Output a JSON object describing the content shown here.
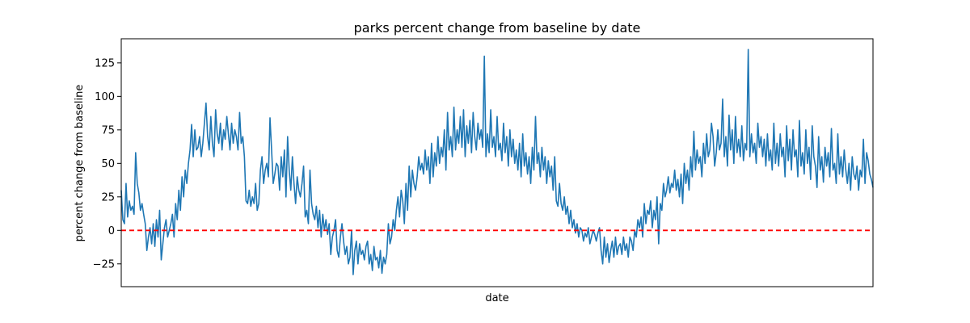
{
  "chart_data": {
    "type": "line",
    "title": "parks percent change from baseline by date",
    "xlabel": "date",
    "ylabel": "percent change from baseline",
    "ylim": [
      -42,
      143
    ],
    "yticks": [
      -25,
      0,
      25,
      50,
      75,
      100,
      125
    ],
    "x_tick_labels_shown": false,
    "grid": false,
    "legend": "none",
    "reference_line": {
      "y": 0,
      "color": "#ff0000",
      "style": "dashed"
    },
    "series": [
      {
        "color": "#1f77b4",
        "values": [
          30,
          8,
          5,
          35,
          10,
          22,
          15,
          18,
          12,
          58,
          35,
          28,
          15,
          20,
          12,
          5,
          -15,
          -5,
          2,
          -10,
          5,
          -12,
          8,
          -5,
          15,
          -22,
          -10,
          2,
          8,
          -5,
          0,
          5,
          12,
          -5,
          20,
          8,
          30,
          15,
          40,
          25,
          45,
          35,
          50,
          60,
          79,
          55,
          75,
          60,
          62,
          70,
          55,
          65,
          80,
          95,
          70,
          60,
          85,
          65,
          55,
          90,
          72,
          65,
          80,
          60,
          75,
          68,
          85,
          72,
          60,
          80,
          65,
          75,
          70,
          60,
          88,
          65,
          70,
          55,
          22,
          20,
          30,
          18,
          25,
          20,
          35,
          15,
          20,
          45,
          55,
          35,
          45,
          50,
          40,
          84,
          60,
          35,
          42,
          50,
          48,
          30,
          55,
          40,
          60,
          25,
          70,
          45,
          30,
          55,
          35,
          20,
          40,
          30,
          25,
          35,
          48,
          10,
          15,
          5,
          45,
          20,
          12,
          8,
          18,
          2,
          15,
          -5,
          12,
          0,
          8,
          -3,
          5,
          -18,
          -5,
          0,
          8,
          -15,
          -20,
          -5,
          5,
          -8,
          -18,
          -12,
          -25,
          -20,
          0,
          -33,
          -15,
          -8,
          -25,
          -10,
          -18,
          -15,
          -22,
          -12,
          -8,
          -25,
          -18,
          -30,
          -12,
          -22,
          -20,
          -28,
          -15,
          -32,
          -20,
          -25,
          -18,
          5,
          -10,
          -5,
          8,
          0,
          15,
          25,
          10,
          30,
          22,
          5,
          35,
          15,
          48,
          25,
          45,
          35,
          30,
          40,
          55,
          45,
          50,
          42,
          60,
          45,
          55,
          35,
          65,
          40,
          58,
          48,
          70,
          50,
          62,
          55,
          75,
          45,
          88,
          60,
          70,
          55,
          92,
          60,
          75,
          65,
          85,
          62,
          90,
          55,
          78,
          65,
          82,
          58,
          88,
          70,
          60,
          80,
          68,
          75,
          62,
          130,
          55,
          72,
          58,
          90,
          62,
          70,
          55,
          85,
          60,
          65,
          52,
          80,
          58,
          70,
          48,
          75,
          55,
          68,
          50,
          60,
          45,
          65,
          40,
          72,
          48,
          58,
          42,
          55,
          35,
          62,
          45,
          85,
          50,
          58,
          40,
          62,
          45,
          55,
          35,
          52,
          40,
          48,
          30,
          55,
          22,
          18,
          35,
          20,
          15,
          25,
          12,
          18,
          5,
          15,
          2,
          8,
          -2,
          5,
          -5,
          2,
          0,
          -8,
          -2,
          -5,
          2,
          -10,
          -5,
          0,
          -3,
          -8,
          -2,
          2,
          -15,
          -25,
          -5,
          -20,
          -10,
          -24,
          -15,
          -8,
          -20,
          -5,
          -18,
          -12,
          -10,
          -18,
          -5,
          -15,
          -10,
          -20,
          -5,
          -8,
          -15,
          0,
          -5,
          8,
          2,
          10,
          -5,
          20,
          5,
          15,
          12,
          22,
          2,
          15,
          8,
          25,
          -10,
          20,
          15,
          35,
          25,
          30,
          40,
          28,
          35,
          32,
          45,
          30,
          38,
          25,
          42,
          20,
          50,
          35,
          45,
          30,
          55,
          40,
          74,
          45,
          60,
          50,
          55,
          40,
          65,
          50,
          72,
          55,
          60,
          80,
          70,
          48,
          58,
          75,
          60,
          65,
          98,
          55,
          70,
          48,
          86,
          60,
          75,
          50,
          85,
          58,
          68,
          55,
          78,
          52,
          65,
          60,
          135,
          55,
          72,
          58,
          65,
          50,
          80,
          62,
          70,
          55,
          68,
          48,
          72,
          52,
          60,
          45,
          80,
          50,
          65,
          48,
          72,
          55,
          62,
          40,
          78,
          52,
          68,
          45,
          75,
          55,
          60,
          40,
          82,
          48,
          58,
          42,
          75,
          50,
          62,
          38,
          78,
          55,
          48,
          32,
          70,
          45,
          55,
          36,
          62,
          48,
          58,
          40,
          76,
          45,
          50,
          35,
          72,
          42,
          55,
          40,
          60,
          45,
          35,
          50,
          30,
          55,
          42,
          38,
          48,
          30,
          45,
          40,
          68,
          35,
          58,
          52,
          42,
          38,
          32
        ]
      }
    ]
  }
}
